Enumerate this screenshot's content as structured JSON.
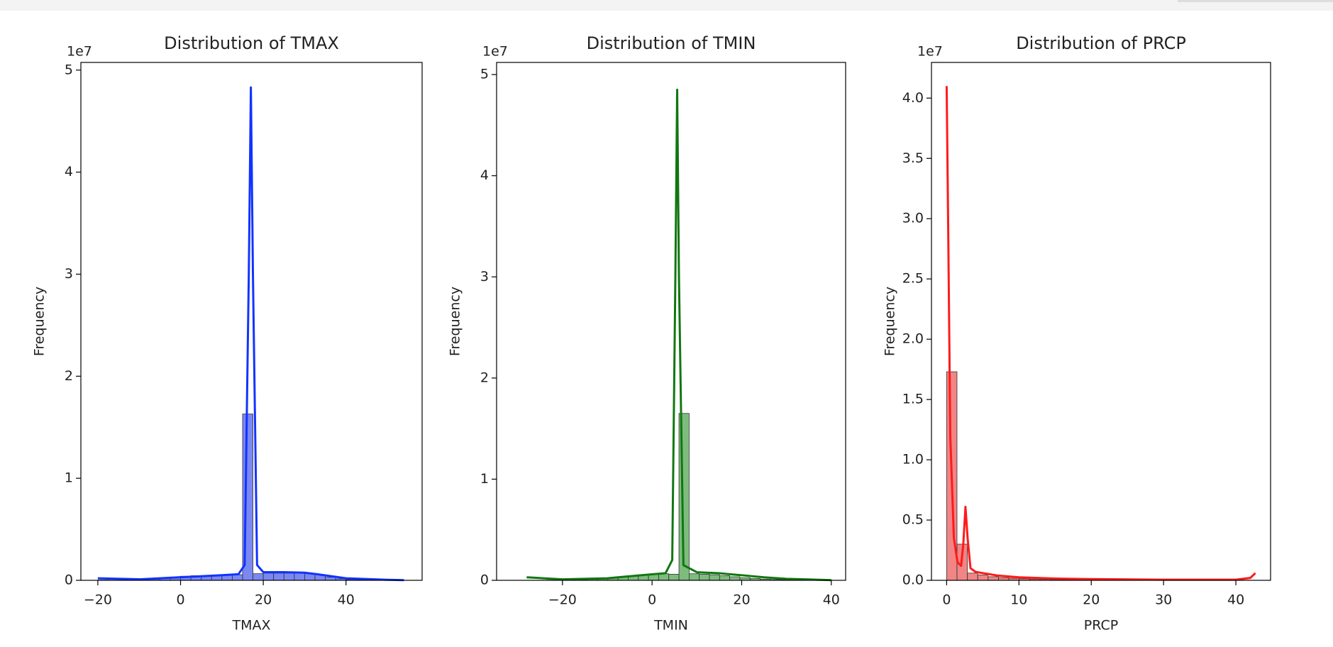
{
  "chart_data": [
    {
      "type": "histogram",
      "title": "Distribution of TMAX",
      "x_label": "TMAX",
      "y_label": "Frequency",
      "y_offset_label": "1e7",
      "color": "blue",
      "bins": [
        -20,
        -17.5,
        -15,
        -12.5,
        -10,
        -7.5,
        -5,
        -2.5,
        0,
        2.5,
        5,
        7.5,
        10,
        12.5,
        15,
        17.5,
        20,
        22.5,
        25,
        27.5,
        30,
        32.5,
        35,
        37.5,
        40,
        42.5,
        45,
        47.5,
        50,
        52.5,
        55
      ],
      "values": [
        30000,
        20000,
        30000,
        50000,
        80000,
        120000,
        200000,
        300000,
        400000,
        450000,
        450000,
        500000,
        500000,
        550000,
        16300000,
        650000,
        700000,
        700000,
        700000,
        700000,
        650000,
        550000,
        300000,
        150000,
        80000,
        40000,
        20000,
        10000,
        5000,
        3000
      ],
      "kde": {
        "x": [
          -20,
          -10,
          0,
          5,
          10,
          14,
          15.5,
          16.5,
          17,
          17.5,
          18.5,
          20,
          25,
          30,
          33,
          40,
          50,
          54
        ],
        "y": [
          200000,
          100000,
          300000,
          400000,
          500000,
          600000,
          1500000,
          30000000,
          48300000,
          30000000,
          1500000,
          800000,
          800000,
          750000,
          600000,
          200000,
          50000,
          20000
        ]
      },
      "xlim": [
        -24.1,
        58.4
      ],
      "ylim": [
        0,
        50750000
      ],
      "xticks": [
        {
          "value": -20,
          "label": "−20"
        },
        0,
        20,
        40
      ],
      "yticks": [
        0,
        {
          "value": 10000000,
          "label": "1"
        },
        {
          "value": 20000000,
          "label": "2"
        },
        {
          "value": 30000000,
          "label": "3"
        },
        {
          "value": 40000000,
          "label": "4"
        },
        {
          "value": 50000000,
          "label": "5"
        }
      ]
    },
    {
      "type": "histogram",
      "title": "Distribution of TMIN",
      "x_label": "TMIN",
      "y_label": "Frequency",
      "y_offset_label": "1e7",
      "color": "green",
      "bins": [
        -28,
        -25.73,
        -23.47,
        -21.2,
        -18.93,
        -16.67,
        -14.4,
        -12.13,
        -9.87,
        -7.6,
        -5.33,
        -3.07,
        -0.8,
        1.47,
        3.73,
        6,
        8.27,
        10.53,
        12.8,
        15.07,
        17.33,
        19.6,
        21.87,
        24.13,
        26.4,
        28.67,
        30.93,
        33.2,
        35.47,
        37.73,
        40
      ],
      "values": [
        10000,
        10000,
        20000,
        30000,
        40000,
        60000,
        100000,
        150000,
        250000,
        350000,
        450000,
        550000,
        600000,
        650000,
        600000,
        16500000,
        650000,
        600000,
        550000,
        450000,
        350000,
        250000,
        180000,
        120000,
        80000,
        50000,
        30000,
        20000,
        10000,
        5000
      ],
      "kde": {
        "x": [
          -28,
          -20,
          -10,
          -5,
          0,
          3,
          4.5,
          5.2,
          5.6,
          6,
          7,
          10,
          15,
          20,
          25,
          30,
          40
        ],
        "y": [
          300000,
          100000,
          200000,
          400000,
          600000,
          700000,
          2000000,
          30000000,
          48500000,
          30000000,
          1500000,
          800000,
          700000,
          500000,
          300000,
          150000,
          20000
        ]
      },
      "xlim": [
        -34.7,
        43.2
      ],
      "ylim": [
        0,
        51200000
      ],
      "xticks": [
        {
          "value": -20,
          "label": "−20"
        },
        0,
        20,
        40
      ],
      "yticks": [
        0,
        {
          "value": 10000000,
          "label": "1"
        },
        {
          "value": 20000000,
          "label": "2"
        },
        {
          "value": 30000000,
          "label": "3"
        },
        {
          "value": 40000000,
          "label": "4"
        },
        {
          "value": 50000000,
          "label": "5"
        }
      ]
    },
    {
      "type": "histogram",
      "title": "Distribution of PRCP",
      "x_label": "PRCP",
      "y_label": "Frequency",
      "y_offset_label": "1e7",
      "color": "red",
      "bins": [
        0,
        1.43,
        2.87,
        4.3,
        5.73,
        7.17,
        8.6,
        10.03,
        11.47,
        12.9,
        14.33,
        15.77,
        17.2,
        18.63,
        20.07,
        21.5,
        22.93,
        24.37,
        25.8,
        27.23,
        28.67,
        30.1,
        31.53,
        32.97,
        34.4,
        35.83,
        37.27,
        38.7,
        40.13,
        41.57,
        43
      ],
      "values": [
        17300000,
        3000000,
        600000,
        450000,
        300000,
        220000,
        170000,
        130000,
        100000,
        80000,
        60000,
        50000,
        40000,
        30000,
        25000,
        20000,
        15000,
        12000,
        10000,
        8000,
        6000,
        5000,
        4000,
        3000,
        2500,
        2000,
        1500,
        1000,
        800,
        500
      ],
      "kde": {
        "x": [
          0,
          0.2,
          0.5,
          1,
          1.5,
          2,
          2.3,
          2.6,
          2.9,
          3.3,
          4,
          5,
          7,
          10,
          15,
          20,
          30,
          40,
          42,
          42.7
        ],
        "y": [
          41000000,
          30000000,
          12000000,
          3500000,
          1500000,
          1200000,
          3000000,
          6100000,
          3500000,
          1000000,
          700000,
          600000,
          400000,
          250000,
          150000,
          100000,
          50000,
          50000,
          200000,
          600000
        ]
      },
      "xlim": [
        -2.1,
        44.8
      ],
      "ylim": [
        0,
        42960000
      ],
      "xticks": [
        0,
        10,
        20,
        30,
        40
      ],
      "yticks": [
        {
          "value": 0,
          "label": "0.0"
        },
        {
          "value": 5000000,
          "label": "0.5"
        },
        {
          "value": 10000000,
          "label": "1.0"
        },
        {
          "value": 15000000,
          "label": "1.5"
        },
        {
          "value": 20000000,
          "label": "2.0"
        },
        {
          "value": 25000000,
          "label": "2.5"
        },
        {
          "value": 30000000,
          "label": "3.0"
        },
        {
          "value": 35000000,
          "label": "3.5"
        },
        {
          "value": 40000000,
          "label": "4.0"
        }
      ]
    }
  ]
}
